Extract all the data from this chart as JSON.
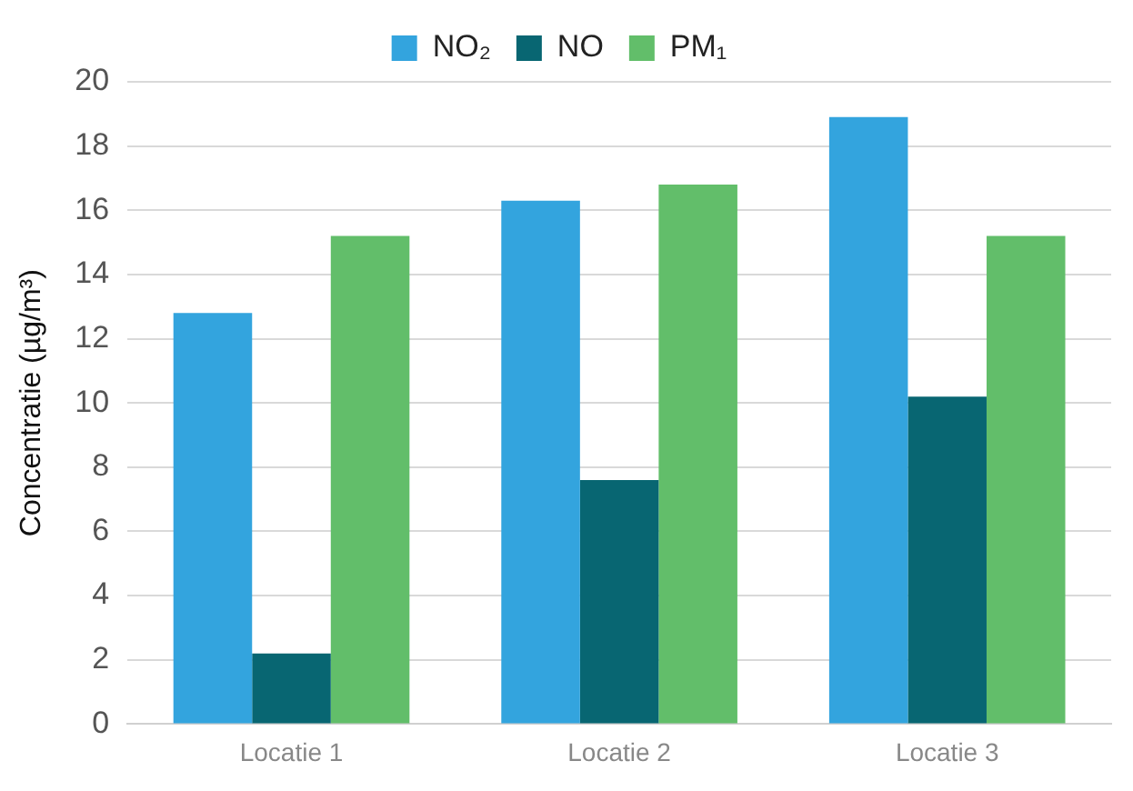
{
  "chart_data": {
    "type": "bar",
    "ylabel": "Concentratie (µg/m³)",
    "categories": [
      "Locatie 1",
      "Locatie 2",
      "Locatie 3"
    ],
    "series": [
      {
        "name": "NO₂",
        "color": "#33a4de",
        "values": [
          12.8,
          16.3,
          18.9
        ]
      },
      {
        "name": "NO",
        "color": "#086672",
        "values": [
          2.2,
          7.6,
          10.2
        ]
      },
      {
        "name": "PM₁",
        "color": "#62be6a",
        "values": [
          15.2,
          16.8,
          15.2
        ]
      }
    ],
    "ylim": [
      0,
      20
    ],
    "yticks": [
      0,
      2,
      4,
      6,
      8,
      10,
      12,
      14,
      16,
      18,
      20
    ],
    "grid": "y",
    "legend": "top"
  }
}
